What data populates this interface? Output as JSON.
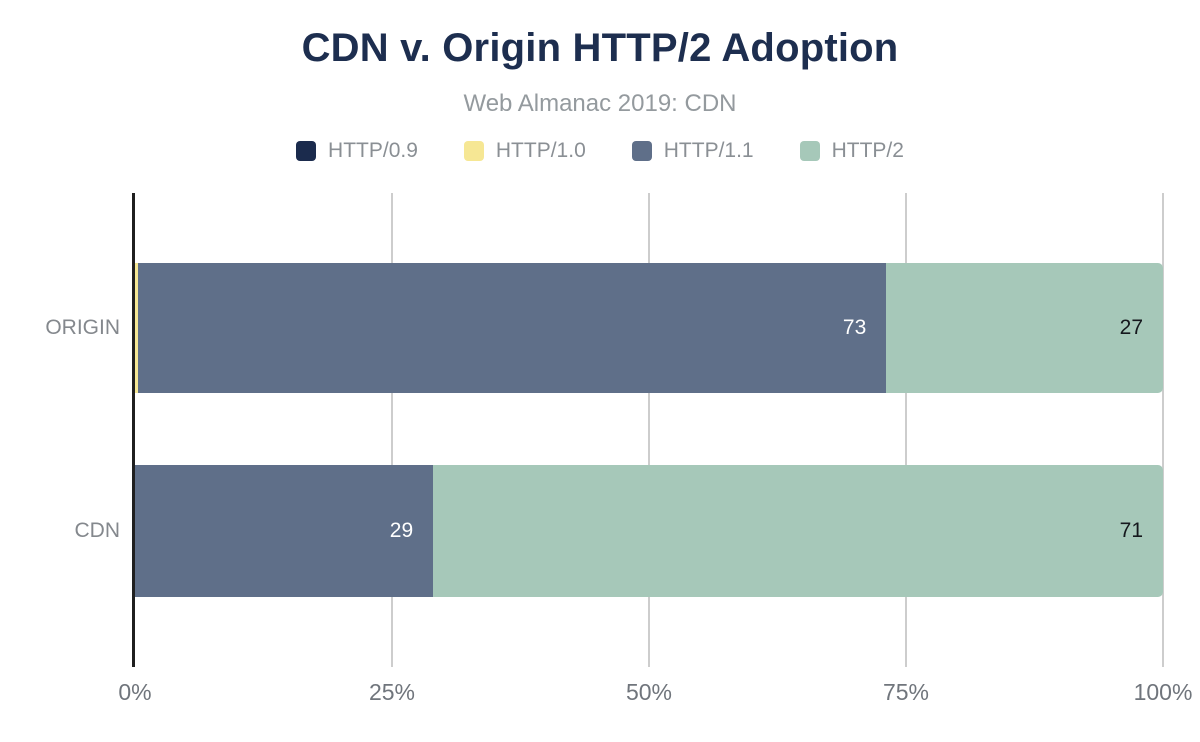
{
  "chart_data": {
    "type": "bar",
    "orientation": "horizontal",
    "stacked": true,
    "title": "CDN v. Origin HTTP/2 Adoption",
    "subtitle": "Web Almanac 2019: CDN",
    "categories": [
      "ORIGIN",
      "CDN"
    ],
    "series": [
      {
        "name": "HTTP/0.9",
        "color": "#1b2b4d",
        "label_color": "#ffffff",
        "values": [
          0,
          0
        ]
      },
      {
        "name": "HTTP/1.0",
        "color": "#f6e794",
        "label_color": "#15181d",
        "values": [
          0.3,
          0
        ]
      },
      {
        "name": "HTTP/1.1",
        "color": "#5f6f89",
        "label_color": "#ffffff",
        "values": [
          73,
          29
        ]
      },
      {
        "name": "HTTP/2",
        "color": "#a6c8b9",
        "label_color": "#15181d",
        "values": [
          27,
          71
        ]
      }
    ],
    "x_ticks": [
      {
        "label": "0%",
        "value": 0
      },
      {
        "label": "25%",
        "value": 25
      },
      {
        "label": "50%",
        "value": 50
      },
      {
        "label": "75%",
        "value": 75
      },
      {
        "label": "100%",
        "value": 100
      }
    ],
    "xlim": [
      0,
      100
    ],
    "grid": true,
    "legend_position": "top",
    "value_label_min": 5,
    "colors": {
      "title": "#1d2e4f",
      "subtitle": "#949a9e",
      "legend_text": "#8a8f94",
      "axis_line": "#1f1f1f",
      "gridline": "#cdcdcd",
      "tick_label": "#70757c",
      "category_label": "#84888d"
    }
  }
}
